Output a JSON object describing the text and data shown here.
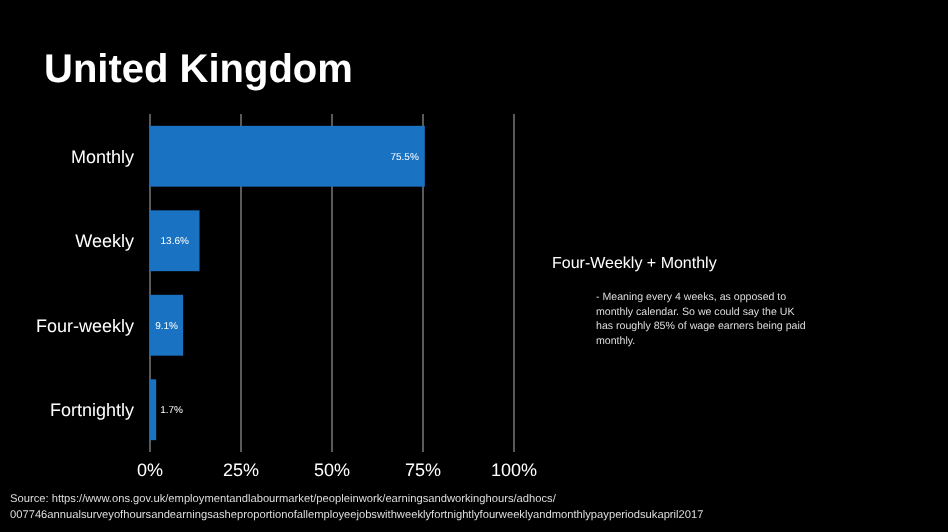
{
  "chart_data": {
    "type": "bar",
    "orientation": "horizontal",
    "title": "United Kingdom",
    "categories": [
      "Monthly",
      "Weekly",
      "Four-weekly",
      "Fortnightly"
    ],
    "values": [
      75.5,
      13.6,
      9.1,
      1.7
    ],
    "color": "#1a73c2",
    "value_labels": [
      "75.5%",
      "13.6%",
      "9.1%",
      "1.7%"
    ],
    "xlim": [
      0,
      100
    ],
    "xticks": [
      {
        "value": 0,
        "label": "0%"
      },
      {
        "value": 25,
        "label": "25%"
      },
      {
        "value": 50,
        "label": "50%"
      },
      {
        "value": 75,
        "label": "75%"
      },
      {
        "value": 100,
        "label": "100%"
      }
    ],
    "grid": "x",
    "annotations": [
      "Four-Weekly + Monthly",
      "- Meaning every 4 weeks, as opposed to monthly calendar. So we could say the UK has roughly 85% of wage earners being paid monthly.",
      "Source: https://www.ons.gov.uk/employmentandlabourmarket/peopleinwork/earningsandworkinghours/adhocs/007746annualsurveyofhoursandearningsasheproportionofallemployeejobswithweeklyfortnightlyfourweeklyandmonthlypayperiodsukapril2017"
    ]
  }
}
